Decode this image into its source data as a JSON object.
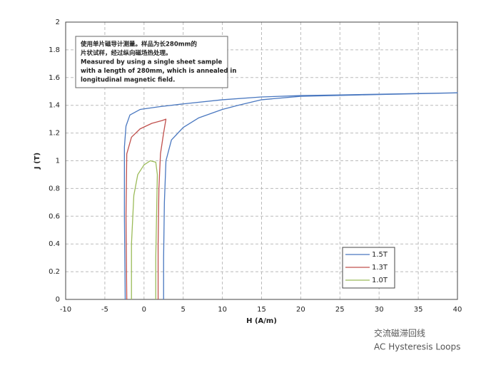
{
  "chart_data": {
    "type": "line",
    "xlabel": "H (A/m)",
    "ylabel": "J (T)",
    "annotation": [
      "使用单片磁导计测量。样品为长280mm的",
      "片状试样，经过纵向磁场热处理。",
      "Measured by using a single sheet sample",
      "with a length of 280mm, which is annealed in",
      "longitudinal magnetic field."
    ],
    "xlim": [
      -10,
      40
    ],
    "xticks": [
      -10,
      -5,
      0,
      5,
      10,
      15,
      20,
      25,
      30,
      35,
      40
    ],
    "ylim": [
      0,
      2
    ],
    "yticks": [
      0,
      0.2,
      0.4,
      0.6,
      0.8,
      1,
      1.2,
      1.4,
      1.6,
      1.8,
      2
    ],
    "grid": true,
    "legend": "lower-right",
    "series": [
      {
        "name": "1.5T",
        "color": "#4a78c0",
        "x": [
          -2.4,
          -2.5,
          -2.5,
          -2.3,
          -1.8,
          -0.5,
          2,
          5,
          10,
          15,
          20,
          25,
          30,
          35,
          40,
          20,
          15,
          12,
          10,
          7,
          5,
          3.5,
          2.8,
          2.6,
          2.5,
          2.5
        ],
        "values": [
          0,
          0.6,
          1.1,
          1.25,
          1.33,
          1.37,
          1.39,
          1.41,
          1.44,
          1.46,
          1.47,
          1.475,
          1.48,
          1.485,
          1.49,
          1.465,
          1.44,
          1.4,
          1.37,
          1.31,
          1.24,
          1.15,
          1.0,
          0.7,
          0.3,
          0
        ]
      },
      {
        "name": "1.3T",
        "color": "#c0504d",
        "x": [
          -2.2,
          -2.3,
          -2.2,
          -1.6,
          -0.5,
          1,
          2.3,
          2.8,
          2.5,
          2.1,
          1.9,
          1.8,
          1.8
        ],
        "values": [
          0,
          0.6,
          1.05,
          1.17,
          1.23,
          1.27,
          1.29,
          1.3,
          1.2,
          1.05,
          0.8,
          0.4,
          0
        ]
      },
      {
        "name": "1.0T",
        "color": "#9bbb59",
        "x": [
          -1.6,
          -1.6,
          -1.3,
          -0.8,
          0,
          0.8,
          1.5,
          1.7,
          1.6,
          1.5,
          1.5
        ],
        "values": [
          0,
          0.4,
          0.75,
          0.9,
          0.97,
          1.0,
          0.99,
          0.9,
          0.6,
          0.3,
          0
        ]
      }
    ]
  },
  "footer": {
    "lines": [
      "交流磁滞回线",
      "AC Hysteresis Loops"
    ]
  }
}
